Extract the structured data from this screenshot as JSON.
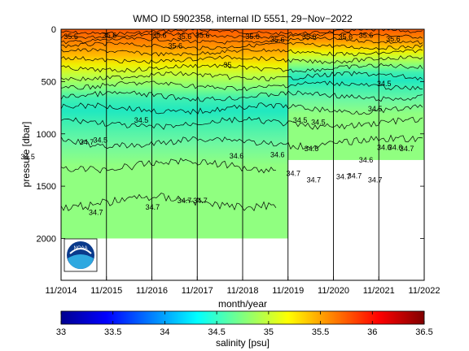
{
  "chart_data": {
    "type": "heatmap",
    "title": "WMO ID 5902358, internal ID 5551, 29−Nov−2022",
    "xlabel": "month/year",
    "ylabel": "pressure [dbar]",
    "x_ticks": [
      "11/2014",
      "11/2015",
      "11/2016",
      "11/2017",
      "11/2018",
      "11/2019",
      "11/2020",
      "11/2021",
      "11/2022"
    ],
    "y_ticks": [
      0,
      500,
      1000,
      1500,
      2000
    ],
    "xlim": [
      "2014-11",
      "2022-11"
    ],
    "ylim": [
      2400,
      0
    ],
    "grid": "vertical lines at each year",
    "colorbar": {
      "label": "salinity [psu]",
      "ticks": [
        33,
        33.5,
        34,
        34.5,
        35,
        35.5,
        36,
        36.5
      ],
      "range": [
        33,
        36.5
      ],
      "colormap": "jet"
    },
    "contour_labels": [
      {
        "text": "35.5",
        "x": 2015.05,
        "y": 70
      },
      {
        "text": "35.6",
        "x": 2015.9,
        "y": 60
      },
      {
        "text": "35.6",
        "x": 2017.0,
        "y": 60
      },
      {
        "text": "35.6",
        "x": 2017.35,
        "y": 160
      },
      {
        "text": "35.6",
        "x": 2017.55,
        "y": 70
      },
      {
        "text": "35.6",
        "x": 2017.95,
        "y": 60
      },
      {
        "text": "35.6",
        "x": 2019.05,
        "y": 70
      },
      {
        "text": "35.6",
        "x": 2019.6,
        "y": 100
      },
      {
        "text": "35.6",
        "x": 2020.3,
        "y": 70
      },
      {
        "text": "35.6",
        "x": 2021.1,
        "y": 75
      },
      {
        "text": "35.6",
        "x": 2021.55,
        "y": 60
      },
      {
        "text": "35.6",
        "x": 2022.15,
        "y": 95
      },
      {
        "text": "35",
        "x": 2018.5,
        "y": 340
      },
      {
        "text": "34.5",
        "x": 2021.95,
        "y": 520
      },
      {
        "text": "34.5",
        "x": 2020.1,
        "y": 870
      },
      {
        "text": "34.5",
        "x": 2020.5,
        "y": 890
      },
      {
        "text": "34.5",
        "x": 2021.75,
        "y": 760
      },
      {
        "text": "34.5",
        "x": 2014.1,
        "y": 1220
      },
      {
        "text": "34.5",
        "x": 2015.7,
        "y": 1060
      },
      {
        "text": "34.5",
        "x": 2016.6,
        "y": 870
      },
      {
        "text": "34.6",
        "x": 2018.7,
        "y": 1210
      },
      {
        "text": "34.6",
        "x": 2019.6,
        "y": 1200
      },
      {
        "text": "34.6",
        "x": 2020.35,
        "y": 1140
      },
      {
        "text": "34.6",
        "x": 2021.55,
        "y": 1250
      },
      {
        "text": "34.6",
        "x": 2021.95,
        "y": 1130
      },
      {
        "text": "34.6",
        "x": 2022.2,
        "y": 1130
      },
      {
        "text": "34.7",
        "x": 2015.4,
        "y": 1080
      },
      {
        "text": "34.7",
        "x": 2019.95,
        "y": 1380
      },
      {
        "text": "34.7",
        "x": 2020.4,
        "y": 1440
      },
      {
        "text": "34.7",
        "x": 2021.05,
        "y": 1410
      },
      {
        "text": "34.7",
        "x": 2021.3,
        "y": 1400
      },
      {
        "text": "34.7",
        "x": 2021.75,
        "y": 1440
      },
      {
        "text": "34.7",
        "x": 2022.45,
        "y": 1140
      },
      {
        "text": "34.7",
        "x": 2015.6,
        "y": 1750
      },
      {
        "text": "34.7",
        "x": 2016.85,
        "y": 1700
      },
      {
        "text": "34.7",
        "x": 2017.55,
        "y": 1640
      },
      {
        "text": "34.7",
        "x": 2017.9,
        "y": 1640
      }
    ],
    "data_coverage": {
      "full_depth_until": "2019-11",
      "max_pressure_until_2019": 2000,
      "max_pressure_after_2019": 1250
    }
  },
  "logo": {
    "text": "NOAA"
  }
}
